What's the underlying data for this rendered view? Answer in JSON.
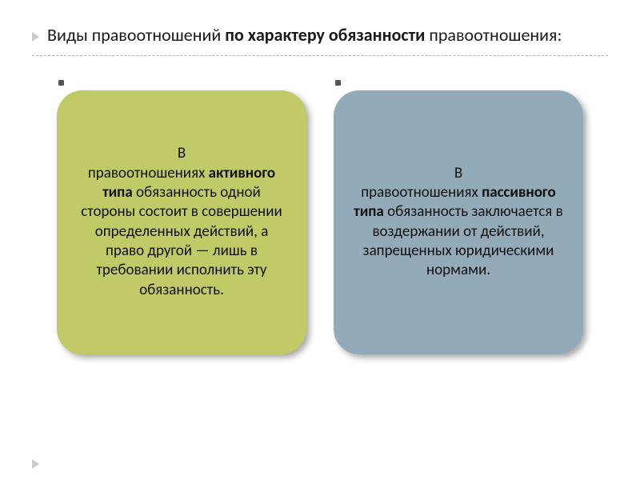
{
  "title": {
    "prefix": "Виды правоотношений ",
    "bold": "по характеру обязанности",
    "suffix": " правоотношения:"
  },
  "cards": {
    "left": {
      "background_color": "#c2c967",
      "p1": "В",
      "p2a": "правоотношениях ",
      "p2b": "активного типа",
      "p2c": " обязанность одной стороны состоит в совершении определенных действий, а право другой — лишь в требовании исполнить эту обязанность."
    },
    "right": {
      "background_color": "#93aab8",
      "p1": "В",
      "p2a": "правоотношениях ",
      "p2b": "пассивного типа",
      "p2c": " обязанность заключается в воздержании от действий, запрещенных юридическими нормами."
    }
  },
  "style": {
    "title_fontsize": 22,
    "card_fontsize": 19,
    "card_radius": 32,
    "bullet_color": "#c8ccd0",
    "divider_color": "#b0b5ba",
    "text_color": "#1a1a1a",
    "shadow": "4px 4px 8px rgba(0,0,0,0.35)"
  }
}
